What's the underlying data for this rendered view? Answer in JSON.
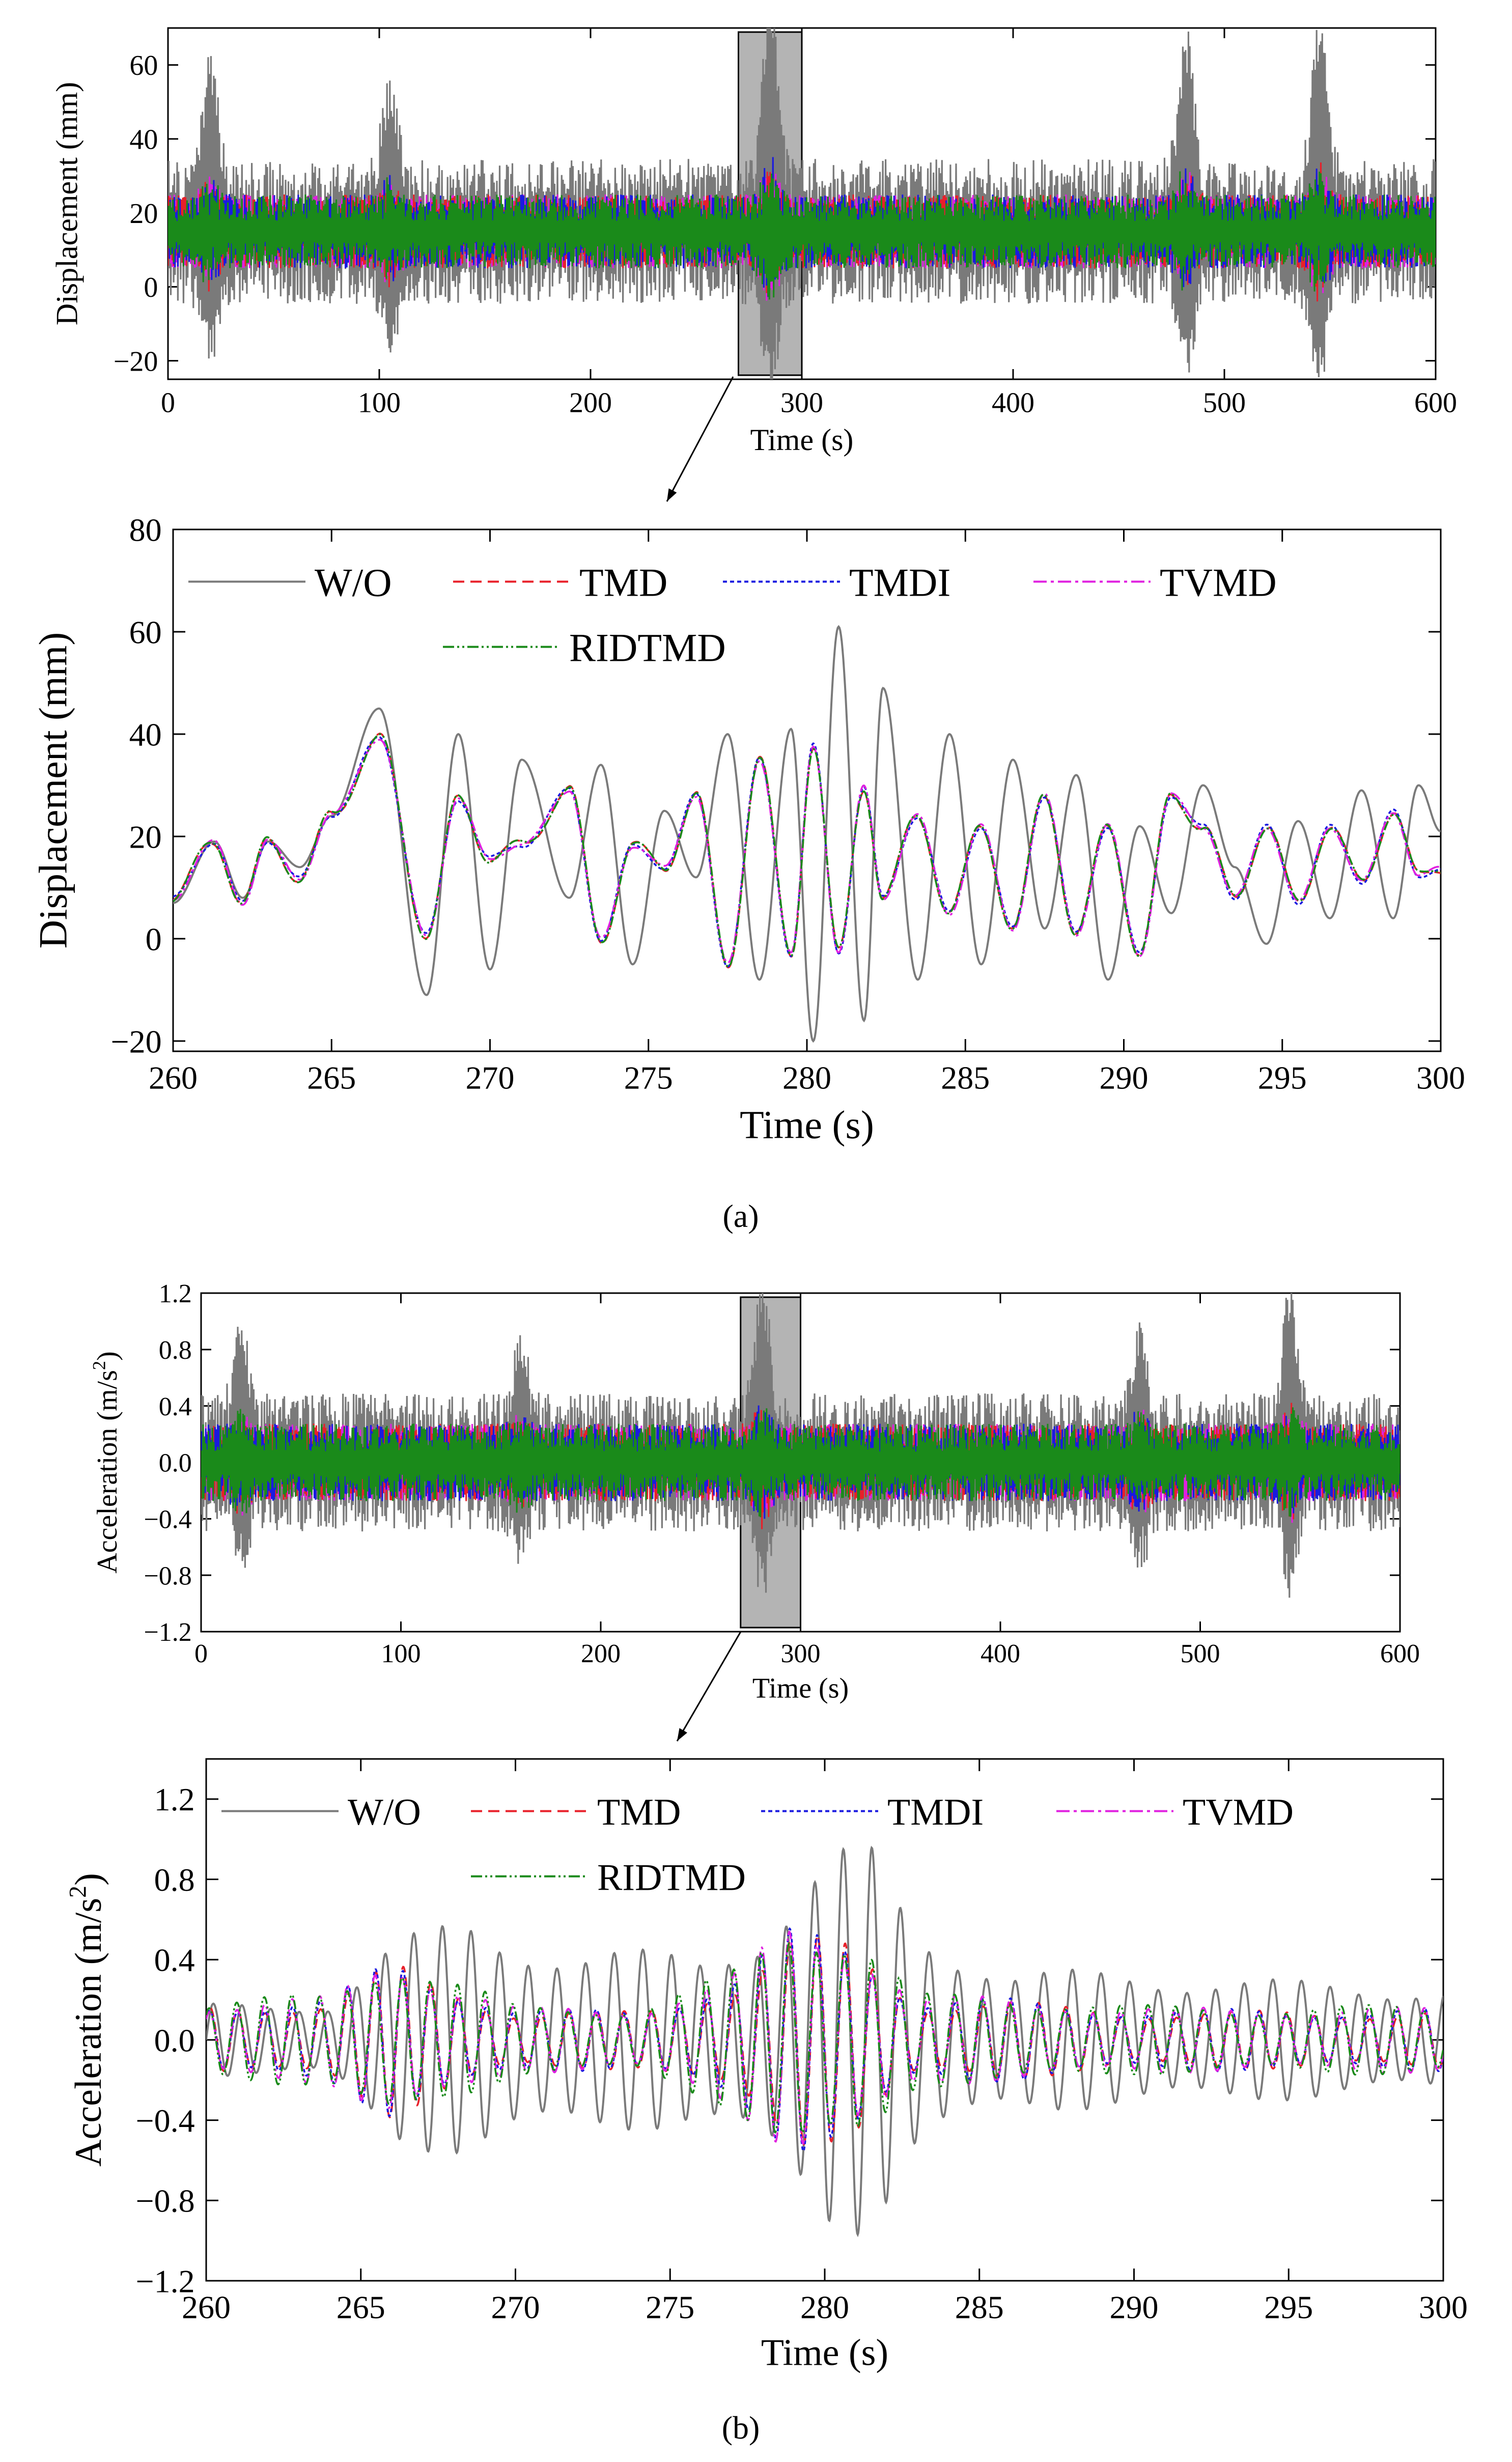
{
  "colors": {
    "wo": "#7a7a7a",
    "tmd": "#e8202a",
    "tmdi": "#1a1ae0",
    "tvmd": "#e020e0",
    "ridtmd": "#1a8a1a",
    "zoom_box": "#b4b4b4"
  },
  "captions": {
    "a": "(a)",
    "b": "(b)"
  },
  "chart_data": [
    {
      "id": "disp_full",
      "type": "line",
      "xlabel": "Time (s)",
      "ylabel": "Displacement (mm)",
      "xlim": [
        0,
        600
      ],
      "ylim": [
        -25,
        70
      ],
      "xticks": [
        0,
        100,
        200,
        300,
        400,
        500,
        600
      ],
      "yticks": [
        -20,
        0,
        20,
        40,
        60
      ],
      "zoom_window": [
        270,
        300
      ],
      "series": [
        {
          "name": "W/O",
          "offset": 15,
          "ctrl_amp": 8,
          "wo_amp": 14,
          "bursts": [
            [
              285,
              45
            ],
            [
              482,
              36
            ],
            [
              545,
              40
            ],
            [
              20,
              30
            ],
            [
              105,
              25
            ]
          ]
        }
      ]
    },
    {
      "id": "disp_zoom",
      "type": "line",
      "xlabel": "Time (s)",
      "ylabel": "Displacement (mm)",
      "xlim": [
        260,
        300
      ],
      "ylim": [
        -22,
        80
      ],
      "xticks": [
        260,
        265,
        270,
        275,
        280,
        285,
        290,
        295,
        300
      ],
      "yticks": [
        -20,
        0,
        20,
        40,
        60,
        80
      ],
      "legend": [
        "W/O",
        "TMD",
        "TMDI",
        "TVMD",
        "RIDTMD"
      ],
      "wo_points": [
        [
          260,
          7
        ],
        [
          261.3,
          19
        ],
        [
          262.2,
          8
        ],
        [
          263,
          19
        ],
        [
          264,
          14
        ],
        [
          265,
          24
        ],
        [
          266.5,
          45
        ],
        [
          268,
          -11
        ],
        [
          269,
          40
        ],
        [
          270,
          -6
        ],
        [
          271,
          35
        ],
        [
          272.5,
          8
        ],
        [
          273.5,
          34
        ],
        [
          274.5,
          -5
        ],
        [
          275.5,
          25
        ],
        [
          276.5,
          12
        ],
        [
          277.5,
          40
        ],
        [
          278.5,
          -8
        ],
        [
          279.5,
          41
        ],
        [
          280.2,
          -20
        ],
        [
          281,
          61
        ],
        [
          281.8,
          -16
        ],
        [
          282.4,
          49
        ],
        [
          283.5,
          -8
        ],
        [
          284.5,
          40
        ],
        [
          285.5,
          -5
        ],
        [
          286.5,
          35
        ],
        [
          287.5,
          2
        ],
        [
          288.5,
          32
        ],
        [
          289.5,
          -8
        ],
        [
          290.5,
          22
        ],
        [
          291.5,
          5
        ],
        [
          292.5,
          30
        ],
        [
          293.5,
          14
        ],
        [
          294.5,
          -1
        ],
        [
          295.5,
          23
        ],
        [
          296.5,
          4
        ],
        [
          297.5,
          29
        ],
        [
          298.5,
          4
        ],
        [
          299.3,
          30
        ],
        [
          300,
          21
        ]
      ],
      "ctrl_points": [
        [
          260,
          8
        ],
        [
          261.3,
          19
        ],
        [
          262.2,
          7
        ],
        [
          263,
          19
        ],
        [
          264,
          12
        ],
        [
          265,
          24
        ],
        [
          266.5,
          39
        ],
        [
          268,
          1
        ],
        [
          269,
          27
        ],
        [
          270,
          16
        ],
        [
          271,
          18
        ],
        [
          272.5,
          29
        ],
        [
          273.5,
          0
        ],
        [
          274.5,
          18
        ],
        [
          275.5,
          14
        ],
        [
          276.5,
          28
        ],
        [
          277.5,
          -5
        ],
        [
          278.5,
          35
        ],
        [
          279.5,
          -3
        ],
        [
          280.2,
          38
        ],
        [
          281,
          -3
        ],
        [
          281.8,
          30
        ],
        [
          282.4,
          8
        ],
        [
          283.5,
          24
        ],
        [
          284.5,
          5
        ],
        [
          285.5,
          22
        ],
        [
          286.5,
          2
        ],
        [
          287.5,
          28
        ],
        [
          288.5,
          1
        ],
        [
          289.5,
          22
        ],
        [
          290.5,
          -3
        ],
        [
          291.5,
          28
        ],
        [
          292.5,
          22
        ],
        [
          293.5,
          8
        ],
        [
          294.5,
          22
        ],
        [
          295.5,
          7
        ],
        [
          296.5,
          22
        ],
        [
          297.5,
          11
        ],
        [
          298.5,
          25
        ],
        [
          299.3,
          12
        ],
        [
          300,
          14
        ]
      ]
    },
    {
      "id": "acc_full",
      "type": "line",
      "xlabel": "Time (s)",
      "ylabel": "Acceleration (m/s",
      "ylabel_sup": "2",
      "ylabel_end": ")",
      "xlim": [
        0,
        600
      ],
      "ylim": [
        -1.2,
        1.2
      ],
      "xticks": [
        0,
        100,
        200,
        300,
        400,
        500,
        600
      ],
      "yticks": [
        -1.2,
        -0.8,
        -0.4,
        0.0,
        0.4,
        0.8,
        1.2
      ],
      "zoom_window": [
        270,
        300
      ],
      "series": [
        {
          "name": "W/O",
          "offset": 0,
          "ctrl_amp": 0.22,
          "wo_amp": 0.35,
          "bursts": [
            [
              281,
              0.85
            ],
            [
              545,
              0.8
            ],
            [
              20,
              0.55
            ],
            [
              160,
              0.5
            ],
            [
              470,
              0.55
            ]
          ]
        }
      ]
    },
    {
      "id": "acc_zoom",
      "type": "line",
      "xlabel": "Time (s)",
      "ylabel": "Acceleration (m/s",
      "ylabel_sup": "2",
      "ylabel_end": ")",
      "xlim": [
        260,
        300
      ],
      "ylim": [
        -1.2,
        1.4
      ],
      "xticks": [
        260,
        265,
        270,
        275,
        280,
        285,
        290,
        295,
        300
      ],
      "yticks": [
        -1.2,
        -0.8,
        -0.4,
        0.0,
        0.4,
        0.8,
        1.2
      ],
      "legend": [
        "W/O",
        "TMD",
        "TMDI",
        "TVMD",
        "RIDTMD"
      ],
      "wo_env": [
        [
          260,
          0.18
        ],
        [
          264,
          0.2
        ],
        [
          266,
          0.5
        ],
        [
          268.5,
          0.62
        ],
        [
          272,
          0.45
        ],
        [
          276,
          0.45
        ],
        [
          278,
          0.6
        ],
        [
          280.2,
          0.95
        ],
        [
          281.5,
          0.98
        ],
        [
          283,
          0.6
        ],
        [
          286,
          0.35
        ],
        [
          290,
          0.35
        ],
        [
          295,
          0.3
        ],
        [
          300,
          0.28
        ]
      ],
      "ctrl_env": [
        [
          260,
          0.18
        ],
        [
          264,
          0.2
        ],
        [
          266,
          0.4
        ],
        [
          270,
          0.15
        ],
        [
          274,
          0.15
        ],
        [
          277,
          0.3
        ],
        [
          279,
          0.55
        ],
        [
          281,
          0.5
        ],
        [
          283,
          0.2
        ],
        [
          286,
          0.2
        ],
        [
          290,
          0.15
        ],
        [
          300,
          0.15
        ]
      ]
    }
  ]
}
